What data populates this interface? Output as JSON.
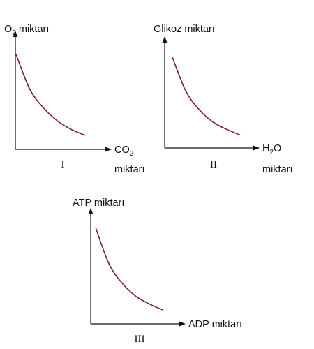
{
  "chart_data": [
    {
      "type": "line",
      "panel_label": "I",
      "ylabel": {
        "main": "O",
        "sub": "2",
        "rest": " miktarı"
      },
      "xlabel": {
        "main": "CO",
        "sub": "2",
        "line2": "miktarı"
      },
      "shape": "decreasing",
      "x": [
        0,
        0.2,
        0.4,
        0.6,
        0.8,
        1.0
      ],
      "y": [
        1.0,
        0.59,
        0.37,
        0.22,
        0.12,
        0.05
      ],
      "color": "#7a1f2a"
    },
    {
      "type": "line",
      "panel_label": "II",
      "ylabel": {
        "main": "Glikoz miktarı",
        "sub": "",
        "rest": ""
      },
      "xlabel": {
        "main": "H",
        "sub": "2",
        "rest": "O",
        "line2": "miktarı"
      },
      "shape": "decreasing",
      "x": [
        0,
        0.2,
        0.4,
        0.6,
        0.8,
        1.0
      ],
      "y": [
        1.0,
        0.58,
        0.35,
        0.2,
        0.11,
        0.04
      ],
      "color": "#7a1f2a"
    },
    {
      "type": "line",
      "panel_label": "III",
      "ylabel": {
        "main": "ATP miktarı",
        "sub": "",
        "rest": ""
      },
      "xlabel": {
        "main": "ADP miktarı",
        "sub": "",
        "rest": ""
      },
      "shape": "decreasing",
      "x": [
        0,
        0.2,
        0.4,
        0.6,
        0.8,
        1.0
      ],
      "y": [
        1.0,
        0.57,
        0.34,
        0.19,
        0.1,
        0.03
      ],
      "color": "#7a1f2a"
    }
  ]
}
